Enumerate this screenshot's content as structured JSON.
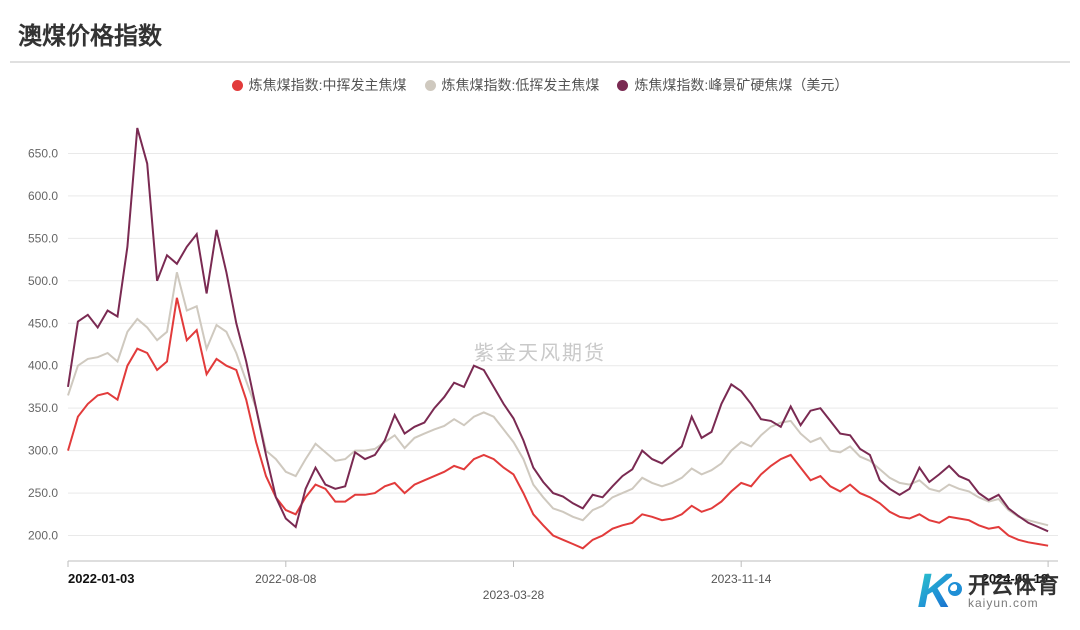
{
  "title": "澳煤价格指数",
  "watermark": "紫金天风期货",
  "logo": {
    "letter": "K",
    "cn": "开云体育",
    "en": "kaiyun.com"
  },
  "chart": {
    "type": "line",
    "background_color": "#ffffff",
    "grid_color": "#e9e9e9",
    "baseline_color": "#bdbdbd",
    "font_family": "Microsoft YaHei",
    "title_fontsize": 24,
    "legend_fontsize": 14,
    "tick_fontsize": 12,
    "line_width": 2,
    "ylim": [
      170,
      700
    ],
    "ytick_step": 50,
    "y_ticks": [
      "200.0",
      "250.0",
      "300.0",
      "350.0",
      "400.0",
      "450.0",
      "500.0",
      "550.0",
      "600.0",
      "650.0"
    ],
    "x_range": 100,
    "x_ticks": [
      {
        "pos": 0,
        "label": "2022-01-03",
        "bold": true
      },
      {
        "pos": 22,
        "label": "2022-08-08",
        "bold": false
      },
      {
        "pos": 45,
        "label": "2023-03-28",
        "bold": false,
        "offset_down": true
      },
      {
        "pos": 68,
        "label": "2023-11-14",
        "bold": false
      },
      {
        "pos": 99,
        "label": "2024-09-19",
        "bold": true
      }
    ],
    "legend": [
      {
        "label": "炼焦煤指数:中挥发主焦煤",
        "color": "#e23b3b"
      },
      {
        "label": "炼焦煤指数:低挥发主焦煤",
        "color": "#cfc9bf"
      },
      {
        "label": "炼焦煤指数:峰景矿硬焦煤（美元）",
        "color": "#7a2a52"
      }
    ],
    "series": [
      {
        "name": "series-mid-vol",
        "color": "#e23b3b",
        "points": [
          [
            0,
            300
          ],
          [
            1,
            340
          ],
          [
            2,
            355
          ],
          [
            3,
            365
          ],
          [
            4,
            368
          ],
          [
            5,
            360
          ],
          [
            6,
            400
          ],
          [
            7,
            420
          ],
          [
            8,
            415
          ],
          [
            9,
            395
          ],
          [
            10,
            405
          ],
          [
            11,
            480
          ],
          [
            12,
            430
          ],
          [
            13,
            442
          ],
          [
            14,
            390
          ],
          [
            15,
            408
          ],
          [
            16,
            400
          ],
          [
            17,
            395
          ],
          [
            18,
            360
          ],
          [
            19,
            310
          ],
          [
            20,
            270
          ],
          [
            21,
            245
          ],
          [
            22,
            230
          ],
          [
            23,
            225
          ],
          [
            24,
            245
          ],
          [
            25,
            260
          ],
          [
            26,
            255
          ],
          [
            27,
            240
          ],
          [
            28,
            240
          ],
          [
            29,
            248
          ],
          [
            30,
            248
          ],
          [
            31,
            250
          ],
          [
            32,
            258
          ],
          [
            33,
            262
          ],
          [
            34,
            250
          ],
          [
            35,
            260
          ],
          [
            36,
            265
          ],
          [
            37,
            270
          ],
          [
            38,
            275
          ],
          [
            39,
            282
          ],
          [
            40,
            278
          ],
          [
            41,
            290
          ],
          [
            42,
            295
          ],
          [
            43,
            290
          ],
          [
            44,
            280
          ],
          [
            45,
            272
          ],
          [
            46,
            250
          ],
          [
            47,
            225
          ],
          [
            48,
            212
          ],
          [
            49,
            200
          ],
          [
            50,
            195
          ],
          [
            51,
            190
          ],
          [
            52,
            185
          ],
          [
            53,
            195
          ],
          [
            54,
            200
          ],
          [
            55,
            208
          ],
          [
            56,
            212
          ],
          [
            57,
            215
          ],
          [
            58,
            225
          ],
          [
            59,
            222
          ],
          [
            60,
            218
          ],
          [
            61,
            220
          ],
          [
            62,
            225
          ],
          [
            63,
            235
          ],
          [
            64,
            228
          ],
          [
            65,
            232
          ],
          [
            66,
            240
          ],
          [
            67,
            252
          ],
          [
            68,
            262
          ],
          [
            69,
            258
          ],
          [
            70,
            272
          ],
          [
            71,
            282
          ],
          [
            72,
            290
          ],
          [
            73,
            295
          ],
          [
            74,
            280
          ],
          [
            75,
            265
          ],
          [
            76,
            270
          ],
          [
            77,
            258
          ],
          [
            78,
            252
          ],
          [
            79,
            260
          ],
          [
            80,
            250
          ],
          [
            81,
            245
          ],
          [
            82,
            238
          ],
          [
            83,
            228
          ],
          [
            84,
            222
          ],
          [
            85,
            220
          ],
          [
            86,
            225
          ],
          [
            87,
            218
          ],
          [
            88,
            215
          ],
          [
            89,
            222
          ],
          [
            90,
            220
          ],
          [
            91,
            218
          ],
          [
            92,
            212
          ],
          [
            93,
            208
          ],
          [
            94,
            210
          ],
          [
            95,
            200
          ],
          [
            96,
            195
          ],
          [
            97,
            192
          ],
          [
            98,
            190
          ],
          [
            99,
            188
          ]
        ]
      },
      {
        "name": "series-low-vol",
        "color": "#cfc9bf",
        "points": [
          [
            0,
            365
          ],
          [
            1,
            400
          ],
          [
            2,
            408
          ],
          [
            3,
            410
          ],
          [
            4,
            415
          ],
          [
            5,
            405
          ],
          [
            6,
            440
          ],
          [
            7,
            455
          ],
          [
            8,
            445
          ],
          [
            9,
            430
          ],
          [
            10,
            440
          ],
          [
            11,
            510
          ],
          [
            12,
            465
          ],
          [
            13,
            470
          ],
          [
            14,
            420
          ],
          [
            15,
            448
          ],
          [
            16,
            440
          ],
          [
            17,
            415
          ],
          [
            18,
            382
          ],
          [
            19,
            350
          ],
          [
            20,
            300
          ],
          [
            21,
            290
          ],
          [
            22,
            275
          ],
          [
            23,
            270
          ],
          [
            24,
            290
          ],
          [
            25,
            308
          ],
          [
            26,
            298
          ],
          [
            27,
            288
          ],
          [
            28,
            290
          ],
          [
            29,
            300
          ],
          [
            30,
            300
          ],
          [
            31,
            302
          ],
          [
            32,
            310
          ],
          [
            33,
            318
          ],
          [
            34,
            303
          ],
          [
            35,
            315
          ],
          [
            36,
            320
          ],
          [
            37,
            325
          ],
          [
            38,
            329
          ],
          [
            39,
            337
          ],
          [
            40,
            330
          ],
          [
            41,
            340
          ],
          [
            42,
            345
          ],
          [
            43,
            340
          ],
          [
            44,
            325
          ],
          [
            45,
            310
          ],
          [
            46,
            290
          ],
          [
            47,
            260
          ],
          [
            48,
            245
          ],
          [
            49,
            232
          ],
          [
            50,
            228
          ],
          [
            51,
            222
          ],
          [
            52,
            218
          ],
          [
            53,
            230
          ],
          [
            54,
            235
          ],
          [
            55,
            245
          ],
          [
            56,
            250
          ],
          [
            57,
            255
          ],
          [
            58,
            268
          ],
          [
            59,
            262
          ],
          [
            60,
            258
          ],
          [
            61,
            262
          ],
          [
            62,
            268
          ],
          [
            63,
            279
          ],
          [
            64,
            272
          ],
          [
            65,
            277
          ],
          [
            66,
            285
          ],
          [
            67,
            300
          ],
          [
            68,
            310
          ],
          [
            69,
            305
          ],
          [
            70,
            318
          ],
          [
            71,
            328
          ],
          [
            72,
            333
          ],
          [
            73,
            335
          ],
          [
            74,
            320
          ],
          [
            75,
            310
          ],
          [
            76,
            315
          ],
          [
            77,
            300
          ],
          [
            78,
            298
          ],
          [
            79,
            305
          ],
          [
            80,
            293
          ],
          [
            81,
            288
          ],
          [
            82,
            278
          ],
          [
            83,
            268
          ],
          [
            84,
            262
          ],
          [
            85,
            260
          ],
          [
            86,
            265
          ],
          [
            87,
            255
          ],
          [
            88,
            252
          ],
          [
            89,
            260
          ],
          [
            90,
            255
          ],
          [
            91,
            252
          ],
          [
            92,
            245
          ],
          [
            93,
            240
          ],
          [
            94,
            243
          ],
          [
            95,
            230
          ],
          [
            96,
            222
          ],
          [
            97,
            218
          ],
          [
            98,
            215
          ],
          [
            99,
            212
          ]
        ]
      },
      {
        "name": "series-peak-usd",
        "color": "#7a2a52",
        "points": [
          [
            0,
            375
          ],
          [
            1,
            452
          ],
          [
            2,
            460
          ],
          [
            3,
            445
          ],
          [
            4,
            465
          ],
          [
            5,
            458
          ],
          [
            6,
            540
          ],
          [
            7,
            680
          ],
          [
            8,
            638
          ],
          [
            9,
            500
          ],
          [
            10,
            530
          ],
          [
            11,
            520
          ],
          [
            12,
            540
          ],
          [
            13,
            555
          ],
          [
            14,
            485
          ],
          [
            15,
            560
          ],
          [
            16,
            510
          ],
          [
            17,
            450
          ],
          [
            18,
            405
          ],
          [
            19,
            350
          ],
          [
            20,
            295
          ],
          [
            21,
            245
          ],
          [
            22,
            220
          ],
          [
            23,
            210
          ],
          [
            24,
            255
          ],
          [
            25,
            280
          ],
          [
            26,
            260
          ],
          [
            27,
            255
          ],
          [
            28,
            258
          ],
          [
            29,
            298
          ],
          [
            30,
            290
          ],
          [
            31,
            295
          ],
          [
            32,
            312
          ],
          [
            33,
            342
          ],
          [
            34,
            320
          ],
          [
            35,
            328
          ],
          [
            36,
            333
          ],
          [
            37,
            350
          ],
          [
            38,
            363
          ],
          [
            39,
            380
          ],
          [
            40,
            375
          ],
          [
            41,
            400
          ],
          [
            42,
            395
          ],
          [
            43,
            375
          ],
          [
            44,
            355
          ],
          [
            45,
            338
          ],
          [
            46,
            312
          ],
          [
            47,
            280
          ],
          [
            48,
            263
          ],
          [
            49,
            250
          ],
          [
            50,
            246
          ],
          [
            51,
            238
          ],
          [
            52,
            232
          ],
          [
            53,
            248
          ],
          [
            54,
            245
          ],
          [
            55,
            258
          ],
          [
            56,
            270
          ],
          [
            57,
            278
          ],
          [
            58,
            300
          ],
          [
            59,
            290
          ],
          [
            60,
            285
          ],
          [
            61,
            295
          ],
          [
            62,
            305
          ],
          [
            63,
            340
          ],
          [
            64,
            315
          ],
          [
            65,
            322
          ],
          [
            66,
            355
          ],
          [
            67,
            378
          ],
          [
            68,
            370
          ],
          [
            69,
            355
          ],
          [
            70,
            337
          ],
          [
            71,
            335
          ],
          [
            72,
            328
          ],
          [
            73,
            352
          ],
          [
            74,
            330
          ],
          [
            75,
            347
          ],
          [
            76,
            350
          ],
          [
            77,
            335
          ],
          [
            78,
            320
          ],
          [
            79,
            318
          ],
          [
            80,
            302
          ],
          [
            81,
            295
          ],
          [
            82,
            265
          ],
          [
            83,
            255
          ],
          [
            84,
            248
          ],
          [
            85,
            255
          ],
          [
            86,
            280
          ],
          [
            87,
            263
          ],
          [
            88,
            272
          ],
          [
            89,
            282
          ],
          [
            90,
            270
          ],
          [
            91,
            265
          ],
          [
            92,
            250
          ],
          [
            93,
            242
          ],
          [
            94,
            248
          ],
          [
            95,
            232
          ],
          [
            96,
            223
          ],
          [
            97,
            215
          ],
          [
            98,
            210
          ],
          [
            99,
            205
          ]
        ]
      }
    ]
  }
}
